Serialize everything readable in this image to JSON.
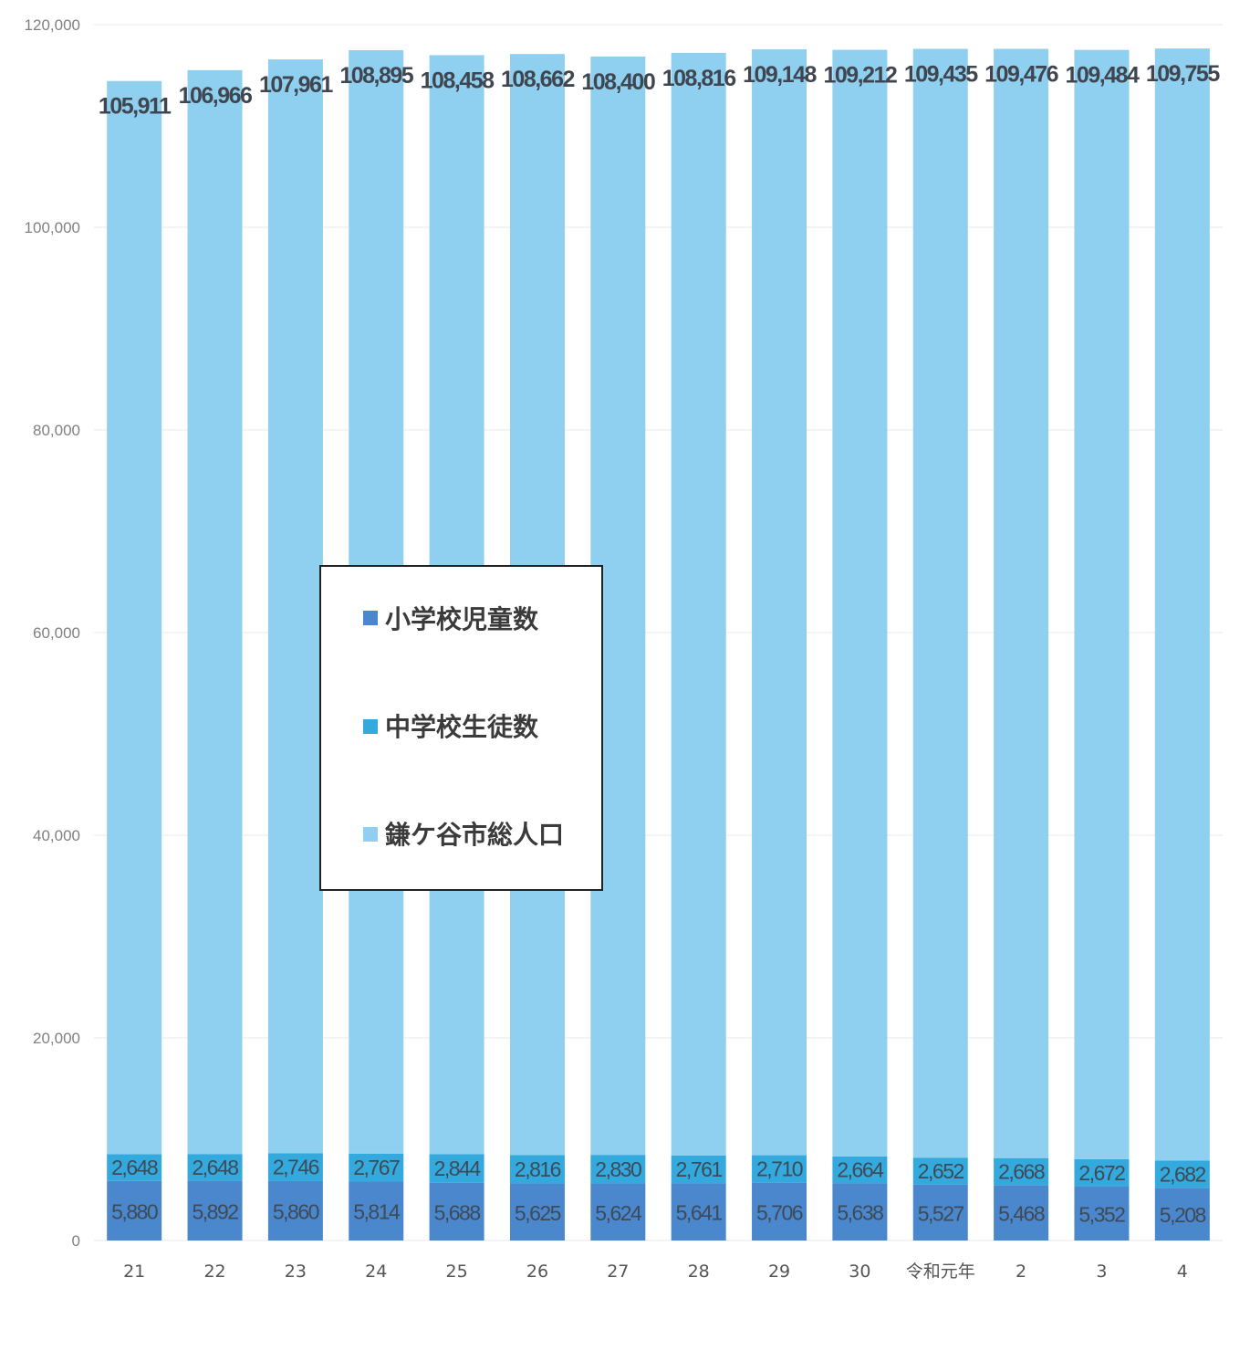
{
  "chart_data": {
    "type": "bar",
    "stacked": true,
    "categories": [
      "21",
      "22",
      "23",
      "24",
      "25",
      "26",
      "27",
      "28",
      "29",
      "30",
      "令和元年",
      "2",
      "3",
      "4"
    ],
    "series": [
      {
        "name": "小学校児童数",
        "color": "#4a87cc",
        "values": [
          5880,
          5892,
          5860,
          5814,
          5688,
          5625,
          5624,
          5641,
          5706,
          5638,
          5527,
          5468,
          5352,
          5208
        ]
      },
      {
        "name": "中学校生徒数",
        "color": "#33a9dd",
        "values": [
          2648,
          2648,
          2746,
          2767,
          2844,
          2816,
          2830,
          2761,
          2710,
          2664,
          2652,
          2668,
          2672,
          2682
        ]
      },
      {
        "name": "鎌ケ谷市総人口",
        "color": "#8fd0f0",
        "values": [
          105911,
          106966,
          107961,
          108895,
          108458,
          108662,
          108400,
          108816,
          109148,
          109212,
          109435,
          109476,
          109484,
          109755
        ]
      }
    ],
    "value_labels": {
      "elementary": [
        "5,880",
        "5,892",
        "5,860",
        "5,814",
        "5,688",
        "5,625",
        "5,624",
        "5,641",
        "5,706",
        "5,638",
        "5,527",
        "5,468",
        "5,352",
        "5,208"
      ],
      "junior": [
        "2,648",
        "2,648",
        "2,746",
        "2,767",
        "2,844",
        "2,816",
        "2,830",
        "2,761",
        "2,710",
        "2,664",
        "2,652",
        "2,668",
        "2,672",
        "2,682"
      ],
      "total": [
        "105,911",
        "106,966",
        "107,961",
        "108,895",
        "108,458",
        "108,662",
        "108,400",
        "108,816",
        "109,148",
        "109,212",
        "109,435",
        "109,476",
        "109,484",
        "109,755"
      ]
    },
    "yticks": [
      0,
      20000,
      40000,
      60000,
      80000,
      100000,
      120000
    ],
    "ytick_labels": [
      "0",
      "20,000",
      "40,000",
      "60,000",
      "80,000",
      "100,000",
      "120,000"
    ],
    "ylim": [
      0,
      120000
    ],
    "grid": true,
    "legend": {
      "position": "center-left",
      "entries": [
        "小学校児童数",
        "中学校生徒数",
        "鎌ケ谷市総人口"
      ]
    },
    "title": "",
    "xlabel": "",
    "ylabel": ""
  }
}
